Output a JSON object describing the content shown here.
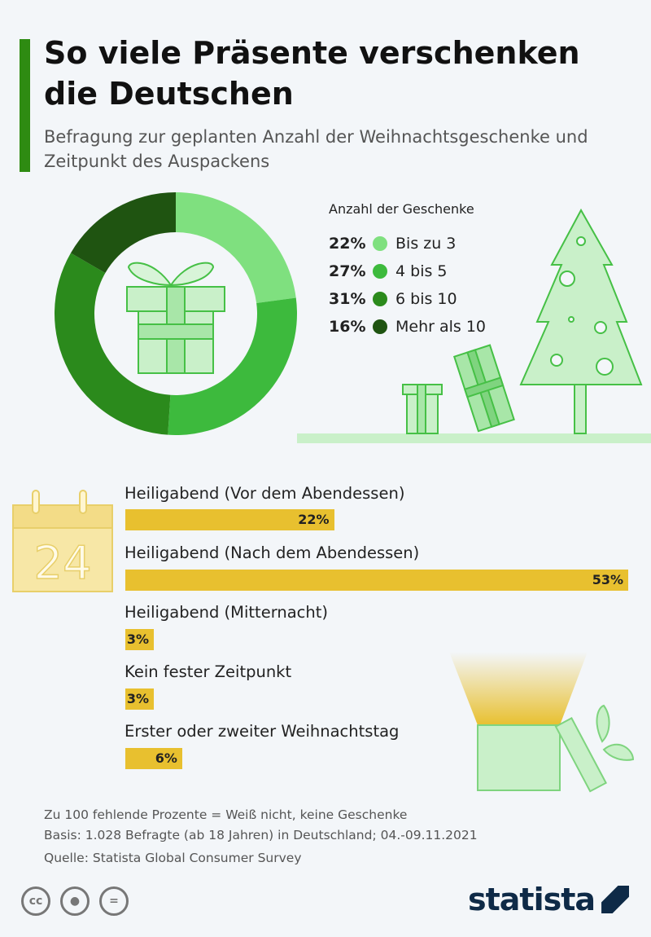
{
  "header": {
    "title": "So viele Präsente verschenken die Deutschen",
    "subtitle": "Befragung zur geplanten Anzahl der Weihnachtsgeschenke und Zeitpunkt des Auspackens"
  },
  "chart_data": [
    {
      "type": "pie",
      "variant": "donut",
      "legend_title": "Anzahl der Geschenke",
      "legend_placement": "right",
      "slices": [
        {
          "label": "Bis zu 3",
          "value": 22,
          "value_label": "22%",
          "color": "#7fe07f"
        },
        {
          "label": "4 bis 5",
          "value": 27,
          "value_label": "27%",
          "color": "#3dba3d"
        },
        {
          "label": "6 bis 10",
          "value": 31,
          "value_label": "31%",
          "color": "#2b8a1c"
        },
        {
          "label": "Mehr als 10",
          "value": 16,
          "value_label": "16%",
          "color": "#1f5411"
        }
      ]
    },
    {
      "type": "bar",
      "orientation": "horizontal",
      "color": "#e8c02f",
      "categories": [
        "Heiligabend (Vor dem Abendessen)",
        "Heiligabend (Nach dem Abendessen)",
        "Heiligabend (Mitternacht)",
        "Kein fester Zeitpunkt",
        "Erster oder zweiter Weihnachtstag"
      ],
      "values": [
        22,
        53,
        3,
        3,
        6
      ],
      "value_labels": [
        "22%",
        "53%",
        "3%",
        "3%",
        "6%"
      ]
    }
  ],
  "calendar_day": "24",
  "footer": {
    "notes": [
      "Zu 100 fehlende Prozente = Weiß nicht, keine Geschenke",
      "Basis: 1.028 Befragte (ab 18 Jahren) in Deutschland; 04.-09.11.2021",
      "Quelle: Statista Global Consumer Survey"
    ],
    "logo": "statista",
    "license_icons": [
      "cc",
      "by",
      "="
    ]
  }
}
